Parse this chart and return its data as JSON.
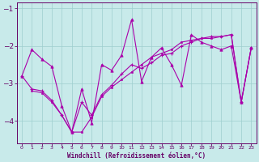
{
  "bg_color": "#c8eaea",
  "line_color": "#aa00aa",
  "marker_color": "#aa00aa",
  "grid_color": "#9ecece",
  "axis_color": "#660066",
  "tick_color": "#660066",
  "xlabel": "Windchill (Refroidissement éolien,°C)",
  "ylim": [
    -4.6,
    -0.85
  ],
  "xlim": [
    -0.5,
    23.5
  ],
  "yticks": [
    -4,
    -3,
    -2,
    -1
  ],
  "xticks": [
    0,
    1,
    2,
    3,
    4,
    5,
    6,
    7,
    8,
    9,
    10,
    11,
    12,
    13,
    14,
    15,
    16,
    17,
    18,
    19,
    20,
    21,
    22,
    23
  ],
  "series1_x": [
    0,
    1,
    2,
    3,
    4,
    5,
    6,
    7,
    8,
    9,
    10,
    11,
    12,
    13,
    14,
    15,
    16,
    17,
    18,
    19,
    20,
    21,
    22,
    23
  ],
  "series1_y": [
    -2.8,
    -2.1,
    -2.35,
    -2.55,
    -3.6,
    -4.3,
    -3.15,
    -4.05,
    -2.5,
    -2.65,
    -2.25,
    -1.3,
    -2.95,
    -2.3,
    -2.05,
    -2.5,
    -3.05,
    -1.7,
    -1.9,
    -2.0,
    -2.1,
    -2.0,
    -3.5,
    -2.05
  ],
  "series2_x": [
    0,
    1,
    2,
    3,
    4,
    5,
    6,
    7,
    8,
    9,
    10,
    11,
    12,
    13,
    14,
    15,
    16,
    17,
    18,
    19,
    20,
    21,
    22,
    23
  ],
  "series2_y": [
    -2.8,
    -3.15,
    -3.2,
    -3.45,
    -3.85,
    -4.3,
    -3.5,
    -3.85,
    -3.3,
    -3.05,
    -2.75,
    -2.5,
    -2.6,
    -2.45,
    -2.25,
    -2.2,
    -2.0,
    -1.9,
    -1.8,
    -1.75,
    -1.75,
    -1.7,
    -3.5,
    -2.05
  ],
  "series3_x": [
    1,
    2,
    3,
    4,
    5,
    6,
    7,
    8,
    9,
    10,
    11,
    12,
    13,
    14,
    15,
    16,
    17,
    18,
    19,
    20,
    21,
    22,
    23
  ],
  "series3_y": [
    -3.2,
    -3.25,
    -3.5,
    -3.85,
    -4.3,
    -4.3,
    -3.9,
    -3.35,
    -3.1,
    -2.9,
    -2.7,
    -2.5,
    -2.3,
    -2.2,
    -2.1,
    -1.9,
    -1.85,
    -1.8,
    -1.8,
    -1.75,
    -1.7,
    -3.5,
    -2.05
  ]
}
